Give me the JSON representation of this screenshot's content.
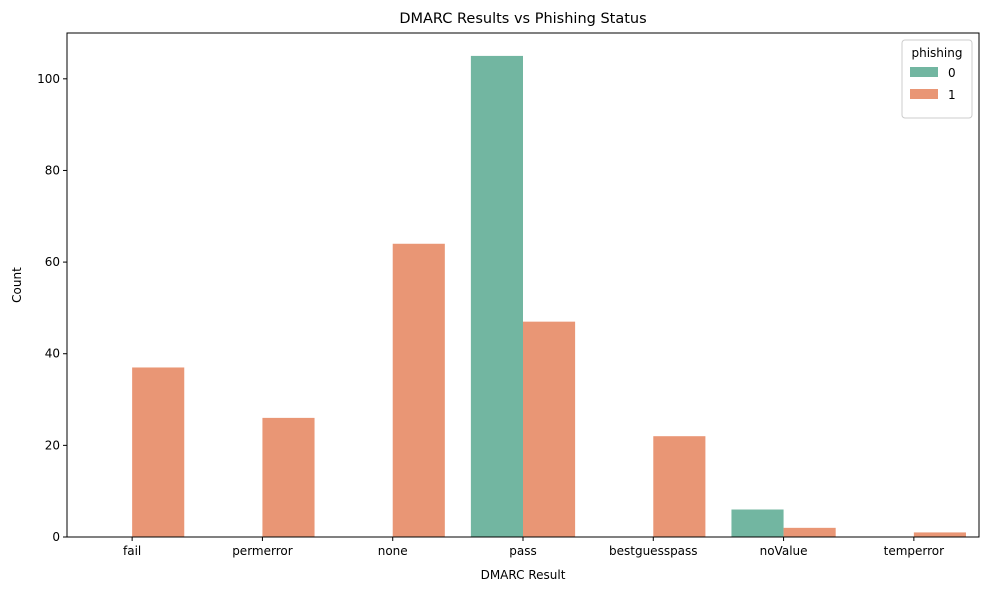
{
  "chart_data": {
    "type": "bar",
    "title": "DMARC Results vs Phishing Status",
    "xlabel": "DMARC Result",
    "ylabel": "Count",
    "categories": [
      "fail",
      "permerror",
      "none",
      "pass",
      "bestguesspass",
      "noValue",
      "temperror"
    ],
    "series": [
      {
        "name": "0",
        "color": "#72b6a1",
        "values": [
          0,
          0,
          0,
          105,
          0,
          6,
          0
        ]
      },
      {
        "name": "1",
        "color": "#e99675",
        "values": [
          37,
          26,
          64,
          47,
          22,
          2,
          1
        ]
      }
    ],
    "ylim": [
      0,
      110
    ],
    "yticks": [
      0,
      20,
      40,
      60,
      80,
      100
    ],
    "legend": {
      "title": "phishing",
      "placement": "top-right"
    },
    "grid": false
  }
}
